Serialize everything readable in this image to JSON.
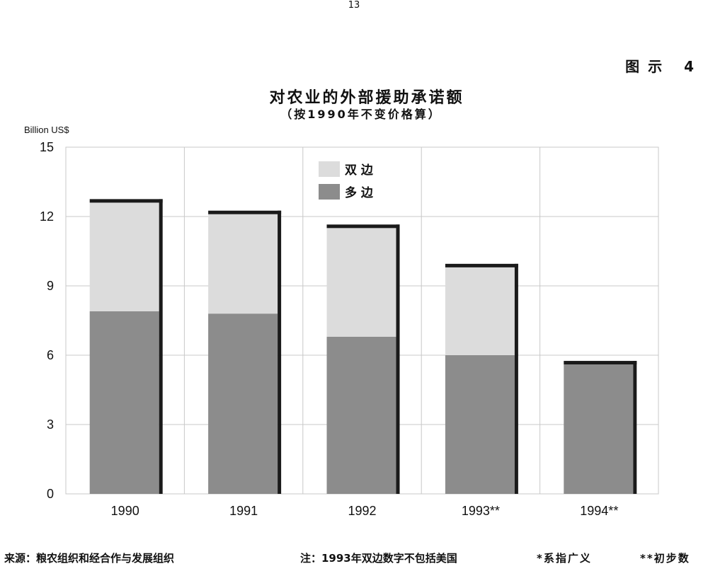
{
  "page_number": "13",
  "figure_label": "图示 4",
  "footer": {
    "source": "来源：粮农组织和经合作与发展组织",
    "note": "注：1993年双边数字不包括美国",
    "footnote1": "*系指广义",
    "footnote2": "**初步数"
  },
  "chart_data": {
    "type": "bar",
    "stacked": true,
    "title": "对农业的外部援助承诺额",
    "subtitle": "（按1990年不变价格算）",
    "xlabel": "",
    "ylabel": "Billion US$",
    "categories": [
      "1990",
      "1991",
      "1992",
      "1993**",
      "1994**"
    ],
    "series": [
      {
        "name": "多 边",
        "color": "#8c8c8c",
        "values": [
          7.9,
          7.8,
          6.8,
          6.0,
          5.6
        ]
      },
      {
        "name": "双 边",
        "color": "#dcdcdc",
        "values": [
          4.7,
          4.3,
          4.7,
          3.8,
          0
        ]
      }
    ],
    "ylim": [
      0,
      15
    ],
    "yticks": [
      0,
      3,
      6,
      9,
      12,
      15
    ],
    "grid": true,
    "legend_position": "top-center",
    "bar_shadow_color": "#1a1a1a"
  }
}
